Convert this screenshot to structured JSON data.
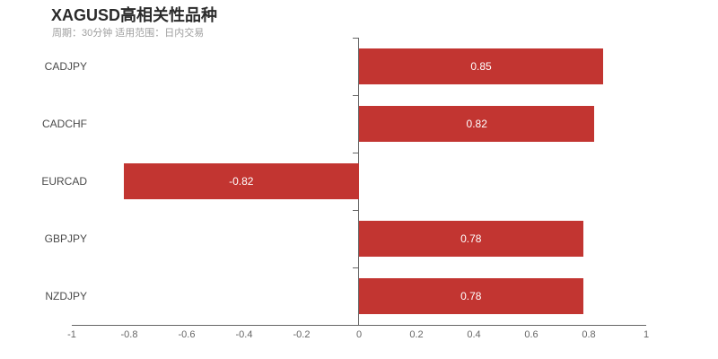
{
  "header": {
    "title": "XAGUSD高相关性品种",
    "subtitle": "周期：30分钟 适用范围：日内交易"
  },
  "chart_data": {
    "type": "bar",
    "orientation": "horizontal",
    "title": "XAGUSD高相关性品种",
    "subtitle": "周期：30分钟 适用范围：日内交易",
    "categories": [
      "CADJPY",
      "CADCHF",
      "EURCAD",
      "GBPJPY",
      "NZDJPY"
    ],
    "values": [
      0.85,
      0.82,
      -0.82,
      0.78,
      0.78
    ],
    "value_labels": [
      "0.85",
      "0.82",
      "-0.82",
      "0.78",
      "0.78"
    ],
    "xlim": [
      -1,
      1
    ],
    "x_tick_labels": [
      "-1",
      "-0.8",
      "-0.6",
      "-0.4",
      "-0.2",
      "0",
      "0.2",
      "0.4",
      "0.6",
      "0.8",
      "1"
    ],
    "x_tick_values": [
      -1,
      -0.8,
      -0.6,
      -0.4,
      -0.2,
      0,
      0.2,
      0.4,
      0.6,
      0.8,
      1
    ],
    "grid": false,
    "legend_position": "none",
    "colors": {
      "bar": "#c23531",
      "bar_value_label": "#ffffff",
      "axis": "#666666",
      "tick_label": "#666666",
      "category_label": "#4a4a4a",
      "title": "#2b2b2b",
      "subtitle": "#9e9e9e"
    }
  }
}
